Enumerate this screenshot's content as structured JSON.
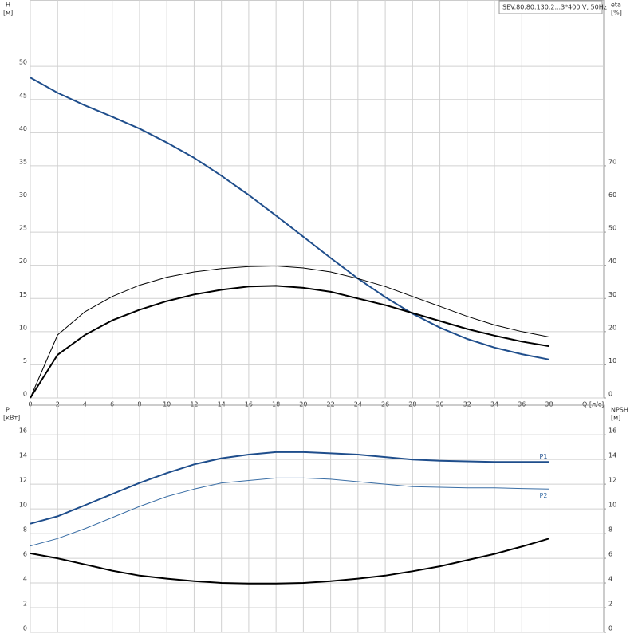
{
  "chart_data": [
    {
      "type": "line",
      "title": "SEV.80.80.130.2...3*400 V, 50Hz",
      "y_label": "H",
      "y_unit": "[м]",
      "y2_label": "eta",
      "y2_unit": "[%]",
      "x_label": "Q [л/с]",
      "x": [
        0,
        2,
        4,
        6,
        8,
        10,
        12,
        14,
        16,
        18,
        20,
        22,
        24,
        26,
        28,
        30,
        32,
        34,
        36,
        38
      ],
      "xlim": [
        0,
        42
      ],
      "xticks": [
        0,
        2,
        4,
        6,
        8,
        10,
        12,
        14,
        16,
        18,
        20,
        22,
        24,
        26,
        28,
        30,
        32,
        34,
        36,
        38
      ],
      "ylim": [
        0,
        60
      ],
      "yticks": [
        0,
        5,
        10,
        15,
        20,
        25,
        30,
        35,
        40,
        45,
        50
      ],
      "y2lim": [
        0,
        120
      ],
      "y2ticks": [
        0,
        10,
        20,
        30,
        40,
        50,
        60,
        70
      ],
      "grid": true,
      "series": [
        {
          "color": "#1f4e8c",
          "width": 2,
          "values": [
            48.3,
            46,
            44.1,
            42.4,
            40.6,
            38.5,
            36.2,
            33.5,
            30.6,
            27.5,
            24.3,
            21.1,
            18.0,
            15.2,
            12.7,
            10.6,
            8.9,
            7.6,
            6.6,
            5.8
          ]
        },
        {
          "color": "#000000",
          "width": 1,
          "axis": "y2",
          "values": [
            0,
            19,
            26,
            30.6,
            34,
            36.4,
            38,
            39,
            39.6,
            39.8,
            39.2,
            38,
            36,
            33.6,
            30.6,
            27.6,
            24.6,
            22,
            20,
            18.4
          ]
        },
        {
          "color": "#000000",
          "width": 2,
          "axis": "y2",
          "values": [
            0,
            13,
            19,
            23.4,
            26.6,
            29.2,
            31.2,
            32.6,
            33.6,
            33.8,
            33.2,
            32,
            30,
            28,
            25.6,
            23.2,
            20.8,
            18.8,
            17,
            15.6
          ]
        }
      ]
    },
    {
      "type": "line",
      "y_label": "P",
      "y_unit": "[кВт]",
      "y2_label": "NPSH",
      "y2_unit": "[м]",
      "x": [
        0,
        2,
        4,
        6,
        8,
        10,
        12,
        14,
        16,
        18,
        20,
        22,
        24,
        26,
        28,
        30,
        32,
        34,
        36,
        38
      ],
      "xlim": [
        0,
        42
      ],
      "xticks": [
        0,
        2,
        4,
        6,
        8,
        10,
        12,
        14,
        16,
        18,
        20,
        22,
        24,
        26,
        28,
        30,
        32,
        34,
        36,
        38
      ],
      "ylim": [
        0,
        18.4
      ],
      "yticks": [
        0,
        2,
        4,
        6,
        8,
        10,
        12,
        14,
        16
      ],
      "y2lim": [
        0,
        18.4
      ],
      "y2ticks": [
        0,
        2,
        4,
        6,
        8,
        10,
        12,
        14,
        16
      ],
      "grid": true,
      "series": [
        {
          "name": "P1",
          "color": "#1f4e8c",
          "width": 2,
          "values": [
            8.8,
            9.4,
            10.3,
            11.2,
            12.1,
            12.9,
            13.6,
            14.1,
            14.4,
            14.6,
            14.6,
            14.5,
            14.4,
            14.2,
            14.0,
            13.9,
            13.85,
            13.8,
            13.8,
            13.8
          ]
        },
        {
          "name": "P2",
          "color": "#3a6ea5",
          "width": 1,
          "values": [
            7.0,
            7.6,
            8.4,
            9.3,
            10.2,
            11.0,
            11.6,
            12.1,
            12.3,
            12.5,
            12.5,
            12.4,
            12.2,
            12.0,
            11.8,
            11.75,
            11.7,
            11.7,
            11.65,
            11.6
          ]
        },
        {
          "color": "#000000",
          "width": 2,
          "axis": "y2",
          "values": [
            6.4,
            6.0,
            5.5,
            5.0,
            4.6,
            4.35,
            4.15,
            4.0,
            3.95,
            3.95,
            4.0,
            4.15,
            4.35,
            4.6,
            4.95,
            5.35,
            5.85,
            6.35,
            6.95,
            7.6
          ]
        }
      ]
    }
  ]
}
